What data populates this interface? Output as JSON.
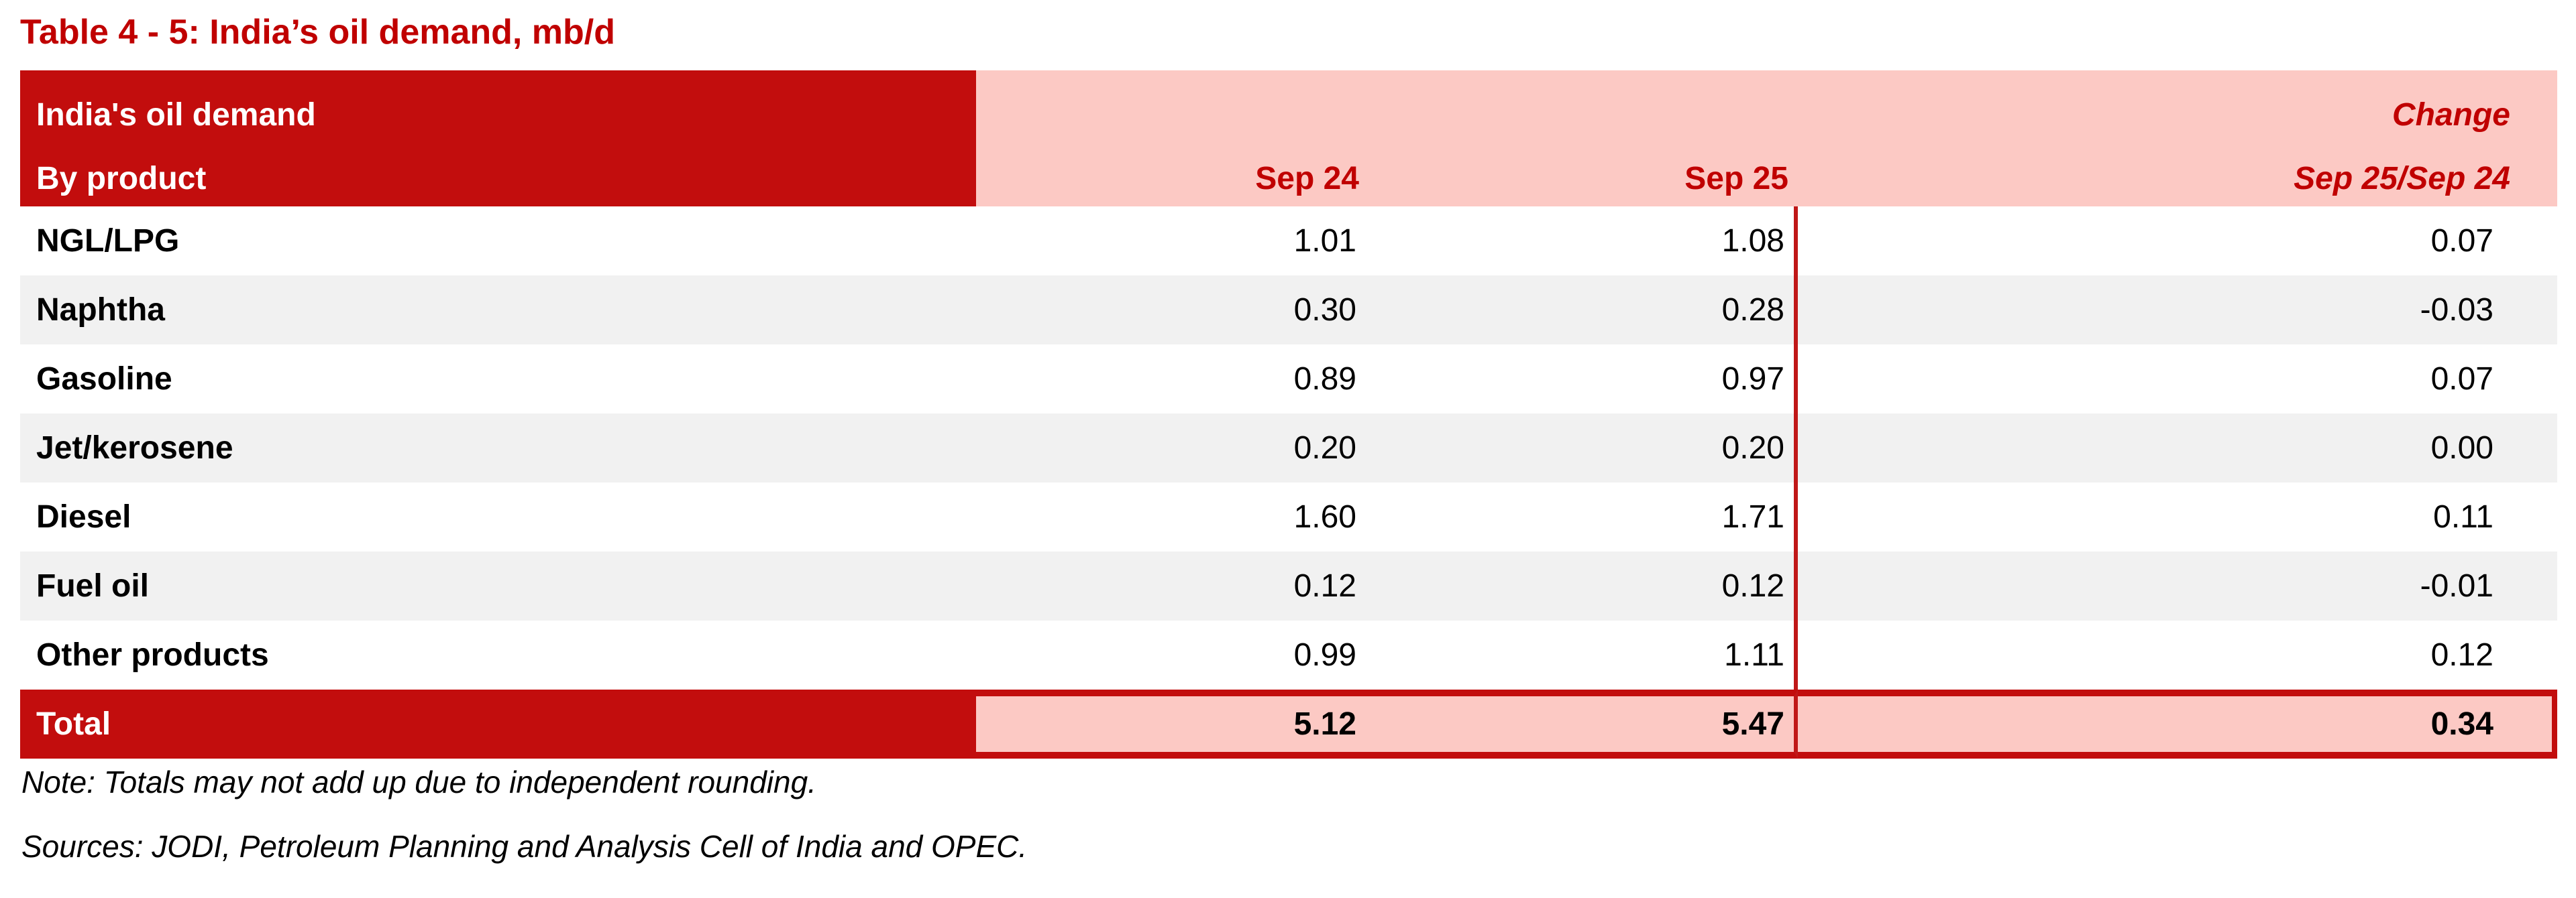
{
  "title": "Table 4 - 5: India’s oil demand, mb/d",
  "table": {
    "header": {
      "col1_line1": "India's oil demand",
      "col1_line2": "By product",
      "sep24": "Sep 24",
      "sep25": "Sep 25",
      "change_line1": "Change",
      "change_line2": "Sep 25/Sep 24"
    },
    "rows": [
      {
        "product": "NGL/LPG",
        "sep24": "1.01",
        "sep25": "1.08",
        "change": "0.07"
      },
      {
        "product": "Naphtha",
        "sep24": "0.30",
        "sep25": "0.28",
        "change": "-0.03"
      },
      {
        "product": "Gasoline",
        "sep24": "0.89",
        "sep25": "0.97",
        "change": "0.07"
      },
      {
        "product": "Jet/kerosene",
        "sep24": "0.20",
        "sep25": "0.20",
        "change": "0.00"
      },
      {
        "product": "Diesel",
        "sep24": "1.60",
        "sep25": "1.71",
        "change": "0.11"
      },
      {
        "product": "Fuel oil",
        "sep24": "0.12",
        "sep25": "0.12",
        "change": "-0.01"
      },
      {
        "product": "Other products",
        "sep24": "0.99",
        "sep25": "1.11",
        "change": "0.12"
      }
    ],
    "total": {
      "product": "Total",
      "sep24": "5.12",
      "sep25": "5.47",
      "change": "0.34"
    }
  },
  "notes": {
    "note": "Note: Totals may not add up due to independent rounding.",
    "sources": "Sources: JODI, Petroleum Planning and Analysis Cell of India and OPEC."
  },
  "colors": {
    "header_dark_red": "#C20D0D",
    "header_pink": "#FCC9C4",
    "title_red": "#C00000",
    "stripe_grey": "#F1F1F1",
    "separator_red": "#C01818"
  }
}
